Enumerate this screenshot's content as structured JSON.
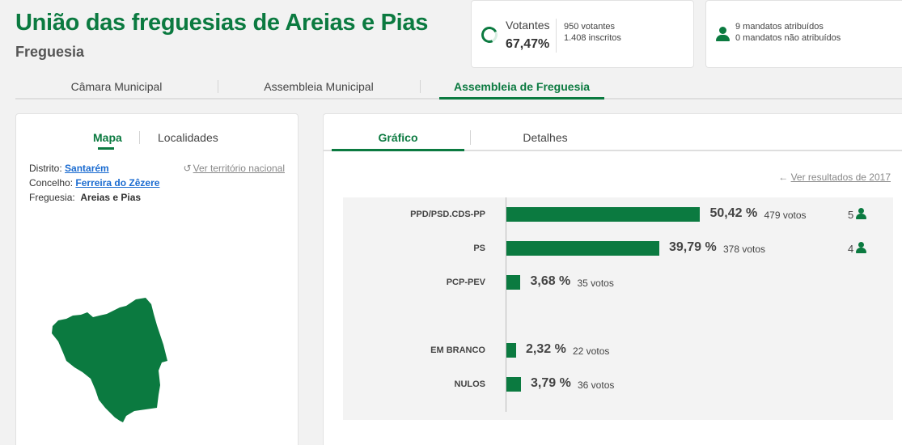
{
  "header": {
    "title": "União das freguesias de Areias e Pias",
    "subtitle": "Freguesia"
  },
  "turnout": {
    "label": "Votantes",
    "percent": "67,47%",
    "votantes": "950 votantes",
    "inscritos": "1.408 inscritos"
  },
  "mandates": {
    "atribuidos": "9 mandatos atribuídos",
    "nao_atribuidos": "0 mandatos não atribuídos"
  },
  "main_tabs": [
    {
      "label": "Câmara Municipal",
      "active": false
    },
    {
      "label": "Assembleia Municipal",
      "active": false
    },
    {
      "label": "Assembleia de Freguesia",
      "active": true
    }
  ],
  "left_panel": {
    "tabs": [
      {
        "label": "Mapa",
        "active": true
      },
      {
        "label": "Localidades",
        "active": false
      }
    ],
    "ver_nacional": "Ver território nacional",
    "distrito_label": "Distrito:",
    "distrito_value": "Santarém",
    "concelho_label": "Concelho:",
    "concelho_value": "Ferreira do Zêzere",
    "freguesia_label": "Freguesia:",
    "freguesia_value": "Areias e Pias",
    "map_color": "#0b7a40"
  },
  "right_panel": {
    "tabs": [
      {
        "label": "Gráfico",
        "active": true
      },
      {
        "label": "Detalhes",
        "active": false
      }
    ],
    "ver_resultados": "Ver resultados de 2017"
  },
  "chart_data": {
    "type": "bar",
    "orientation": "horizontal",
    "color": "#0b7a40",
    "rows": [
      {
        "label": "PPD/PSD.CDS-PP",
        "percent": 50.42,
        "percent_text": "50,42 %",
        "votes_text": "479 votos",
        "mandates": "5"
      },
      {
        "label": "PS",
        "percent": 39.79,
        "percent_text": "39,79 %",
        "votes_text": "378 votos",
        "mandates": "4"
      },
      {
        "label": "PCP-PEV",
        "percent": 3.68,
        "percent_text": "3,68 %",
        "votes_text": "35 votos",
        "mandates": ""
      },
      {
        "label": "EM BRANCO",
        "percent": 2.32,
        "percent_text": "2,32 %",
        "votes_text": "22 votos",
        "mandates": ""
      },
      {
        "label": "NULOS",
        "percent": 3.79,
        "percent_text": "3,79 %",
        "votes_text": "36 votos",
        "mandates": ""
      }
    ]
  }
}
